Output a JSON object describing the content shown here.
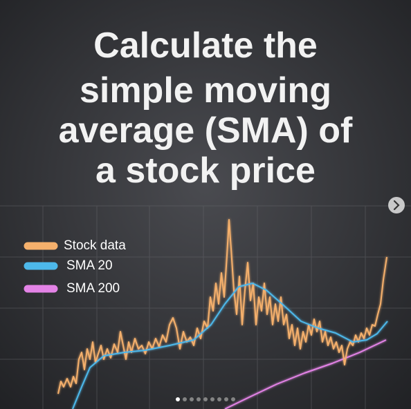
{
  "post": {
    "title_lines": [
      "Calculate the",
      "simple moving",
      "average (SMA) of",
      "a stock price"
    ],
    "legend": [
      {
        "label": "Stock data",
        "color": "#f5b06c"
      },
      {
        "label": "SMA 20",
        "color": "#4db8ea"
      },
      {
        "label": "SMA 200",
        "color": "#e383e6"
      }
    ],
    "carousel": {
      "slides": 9,
      "active": 0
    }
  }
}
